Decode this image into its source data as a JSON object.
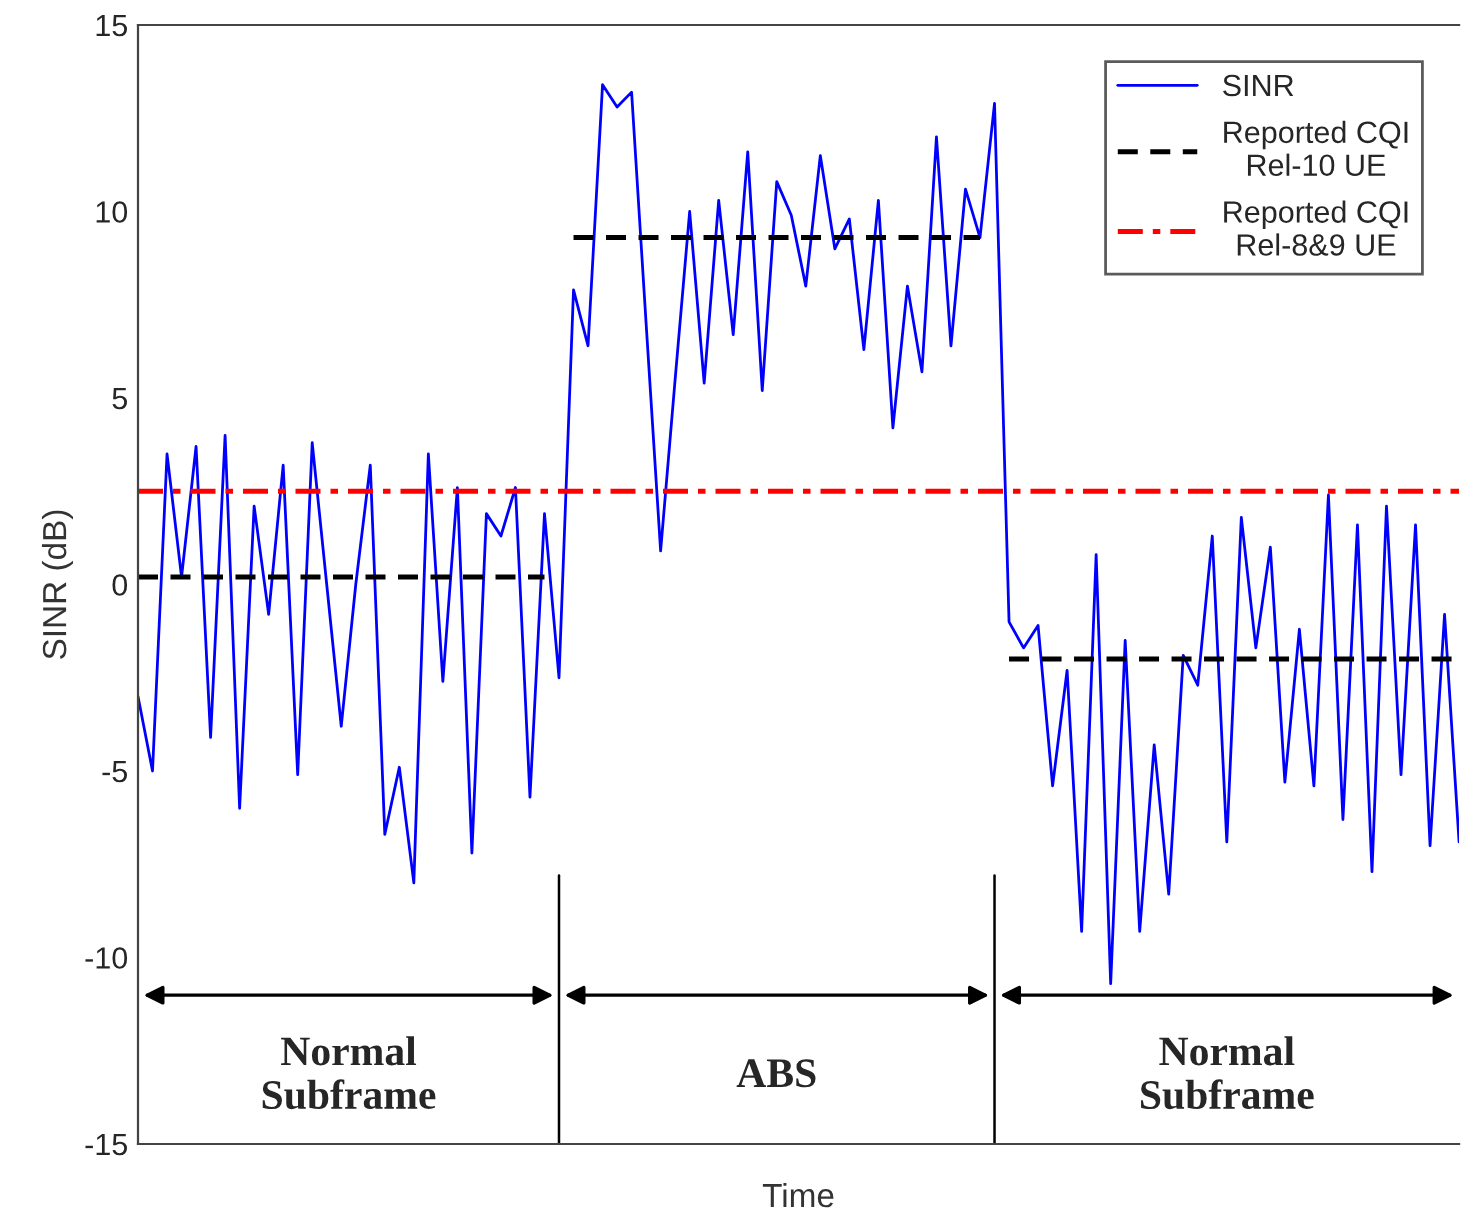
{
  "chart_data": {
    "type": "line",
    "xlabel": "Time",
    "ylabel": "SINR (dB)",
    "categories": [
      null,
      null,
      null,
      null,
      null,
      null,
      null,
      null,
      null,
      null,
      null,
      null,
      null,
      null,
      null,
      null,
      null,
      null,
      null,
      null,
      null,
      null,
      null,
      null,
      null,
      null,
      null,
      null,
      null,
      null,
      null,
      null,
      null,
      null,
      null,
      null,
      null,
      null,
      null,
      null,
      null,
      null,
      null,
      null,
      null,
      null,
      null,
      null,
      null,
      null,
      null,
      null,
      null,
      null,
      null,
      null,
      null,
      null,
      null,
      null,
      null,
      null,
      null,
      null,
      null,
      null,
      null,
      null,
      null,
      null,
      null,
      null,
      null,
      null,
      null,
      null,
      null,
      null,
      null,
      null,
      null,
      null,
      null,
      null,
      null,
      null,
      null,
      null,
      null,
      null,
      null,
      null
    ],
    "ylim": [
      -15,
      15
    ],
    "yticks": [
      -15,
      -10,
      -5,
      0,
      5,
      10,
      15
    ],
    "tick_labels": "y",
    "legend": "top right",
    "series": [
      {
        "name": "SINR",
        "color": "#0000ff",
        "line_style": "solid",
        "values": [
          -3,
          -5,
          3.5,
          0.2,
          3.7,
          -4.1,
          4.0,
          -6.0,
          2.1,
          -0.8,
          3.2,
          -5.1,
          3.8,
          0,
          -3.8,
          0,
          3.2,
          -6.7,
          -4.9,
          -8.0,
          3.5,
          -2.6,
          2.6,
          -7.2,
          1.9,
          1.3,
          2.6,
          -5.7,
          1.9,
          -2.5,
          7.9,
          6.4,
          13.4,
          12.8,
          13.2,
          7.0,
          0.9,
          5.5,
          10.0,
          5.4,
          10.3,
          6.7,
          11.6,
          5.2,
          10.8,
          9.9,
          8.0,
          11.5,
          9.0,
          9.8,
          6.3,
          10.3,
          4.2,
          8.0,
          5.7,
          12.0,
          6.4,
          10.6,
          9.3,
          12.9,
          -1.0,
          -1.7,
          -1.1,
          -5.4,
          -2.3,
          -9.3,
          0.8,
          -10.7,
          -1.5,
          -9.3,
          -4.3,
          -8.3,
          -1.9,
          -2.7,
          1.3,
          -6.9,
          1.8,
          -1.7,
          1.0,
          -5.3,
          -1.2,
          -5.4,
          2.4,
          -6.3,
          1.6,
          -7.7,
          2.1,
          -5.1,
          1.6,
          -7.0,
          -0.8,
          -6.9
        ]
      },
      {
        "name": "Reported CQI\nRel-10 UE",
        "color": "#000000",
        "line_style": "dashed",
        "values": [
          0.2,
          0.2,
          0.2,
          0.2,
          0.2,
          0.2,
          0.2,
          0.2,
          0.2,
          0.2,
          0.2,
          0.2,
          0.2,
          0.2,
          0.2,
          0.2,
          0.2,
          0.2,
          0.2,
          0.2,
          0.2,
          0.2,
          0.2,
          0.2,
          0.2,
          0.2,
          0.2,
          0.2,
          0.2,
          null,
          9.3,
          9.3,
          9.3,
          9.3,
          9.3,
          9.3,
          9.3,
          9.3,
          9.3,
          9.3,
          9.3,
          9.3,
          9.3,
          9.3,
          9.3,
          9.3,
          9.3,
          9.3,
          9.3,
          9.3,
          9.3,
          9.3,
          9.3,
          9.3,
          9.3,
          9.3,
          9.3,
          9.3,
          9.3,
          null,
          -2.0,
          -2.0,
          -2.0,
          -2.0,
          -2.0,
          -2.0,
          -2.0,
          -2.0,
          -2.0,
          -2.0,
          -2.0,
          -2.0,
          -2.0,
          -2.0,
          -2.0,
          -2.0,
          -2.0,
          -2.0,
          -2.0,
          -2.0,
          -2.0,
          -2.0,
          -2.0,
          -2.0,
          -2.0,
          -2.0,
          -2.0,
          -2.0,
          -2.0,
          -2.0,
          -2.0,
          -2.0
        ]
      },
      {
        "name": "Reported CQI\nRel-8&9 UE",
        "color": "#ff0000",
        "line_style": "dashdot",
        "values": [
          2.5,
          2.5,
          2.5,
          2.5,
          2.5,
          2.5,
          2.5,
          2.5,
          2.5,
          2.5,
          2.5,
          2.5,
          2.5,
          2.5,
          2.5,
          2.5,
          2.5,
          2.5,
          2.5,
          2.5,
          2.5,
          2.5,
          2.5,
          2.5,
          2.5,
          2.5,
          2.5,
          2.5,
          2.5,
          2.5,
          2.5,
          2.5,
          2.5,
          2.5,
          2.5,
          2.5,
          2.5,
          2.5,
          2.5,
          2.5,
          2.5,
          2.5,
          2.5,
          2.5,
          2.5,
          2.5,
          2.5,
          2.5,
          2.5,
          2.5,
          2.5,
          2.5,
          2.5,
          2.5,
          2.5,
          2.5,
          2.5,
          2.5,
          2.5,
          2.5,
          2.5,
          2.5,
          2.5,
          2.5,
          2.5,
          2.5,
          2.5,
          2.5,
          2.5,
          2.5,
          2.5,
          2.5,
          2.5,
          2.5,
          2.5,
          2.5,
          2.5,
          2.5,
          2.5,
          2.5,
          2.5,
          2.5,
          2.5,
          2.5,
          2.5,
          2.5,
          2.5,
          2.5,
          2.5,
          2.5,
          2.5,
          2.5
        ]
      }
    ],
    "annotations": [
      "Normal\nSubframe",
      "ABS",
      "Normal\nSubframe"
    ]
  }
}
